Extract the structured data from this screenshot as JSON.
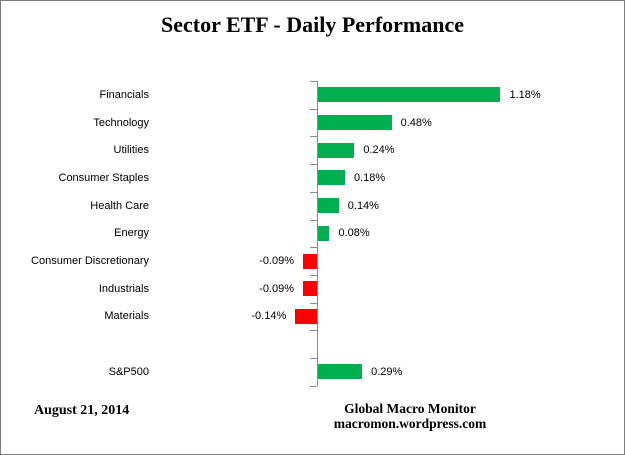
{
  "title": "Sector ETF - Daily Performance",
  "footer": {
    "date": "August 21, 2014",
    "source_line1": "Global Macro Monitor",
    "source_line2": "macromon.wordpress.com"
  },
  "colors": {
    "positive": "#00B050",
    "negative": "#FF0000",
    "axis": "#8C8C8C",
    "border": "#7F7F7F",
    "text": "#000000"
  },
  "chart_data": {
    "type": "bar",
    "orientation": "horizontal",
    "title": "Sector ETF - Daily Performance",
    "categories": [
      "Financials",
      "Technology",
      "Utilities",
      "Consumer Staples",
      "Health Care",
      "Energy",
      "Consumer Discretionary",
      "Industrials",
      "Materials",
      "",
      "S&P500"
    ],
    "values": [
      1.18,
      0.48,
      0.24,
      0.18,
      0.14,
      0.08,
      -0.09,
      -0.09,
      -0.14,
      null,
      0.29
    ],
    "value_labels": [
      "1.18%",
      "0.48%",
      "0.24%",
      "0.18%",
      "0.14%",
      "0.08%",
      "-0.09%",
      "-0.09%",
      "-0.14%",
      "",
      "0.29%"
    ],
    "xlabel": "",
    "ylabel": "",
    "xlim": [
      -0.25,
      1.35
    ],
    "grid": false,
    "legend": false,
    "data_labels": "outside-end"
  }
}
